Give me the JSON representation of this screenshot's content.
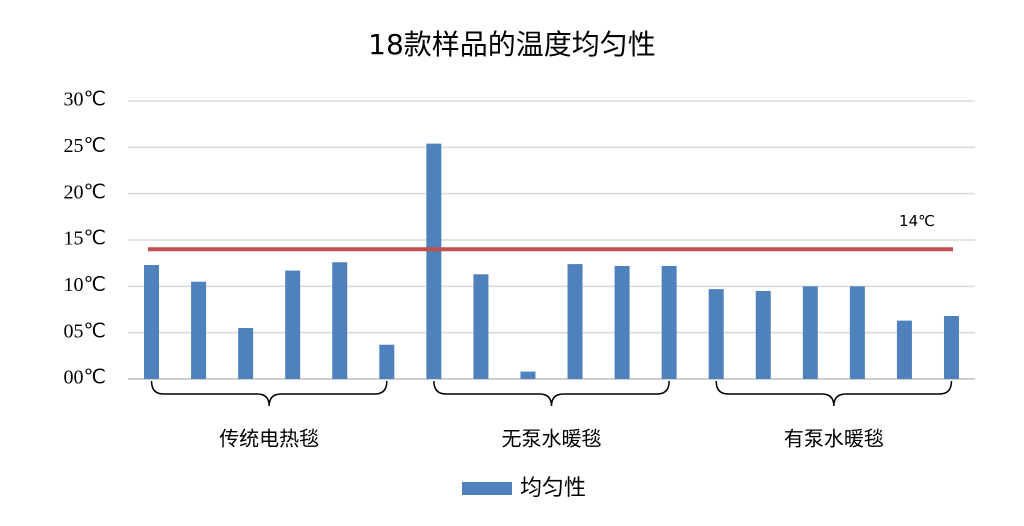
{
  "chart_data": {
    "type": "bar",
    "title": "18款样品的温度均匀性",
    "series": [
      {
        "name": "均匀性",
        "color": "#4f81bd",
        "values": [
          12.3,
          10.5,
          5.5,
          11.7,
          12.6,
          3.7,
          25.4,
          11.3,
          0.8,
          12.4,
          12.2,
          12.2,
          9.7,
          9.5,
          10.0,
          10.0,
          6.3,
          6.8
        ]
      }
    ],
    "groups": [
      "传统电热毯",
      "无泵水暖毯",
      "有泵水暖毯"
    ],
    "ylim": [
      0,
      30
    ],
    "yticks": [
      {
        "value": 0,
        "label": "00℃"
      },
      {
        "value": 5,
        "label": "05℃"
      },
      {
        "value": 10,
        "label": "10℃"
      },
      {
        "value": 15,
        "label": "15℃"
      },
      {
        "value": 20,
        "label": "20℃"
      },
      {
        "value": 25,
        "label": "25℃"
      },
      {
        "value": 30,
        "label": "30℃"
      }
    ],
    "grid": true,
    "reference_line": {
      "value": 14,
      "label": "14℃",
      "color": "#c0504d"
    },
    "legend": "bottom"
  }
}
